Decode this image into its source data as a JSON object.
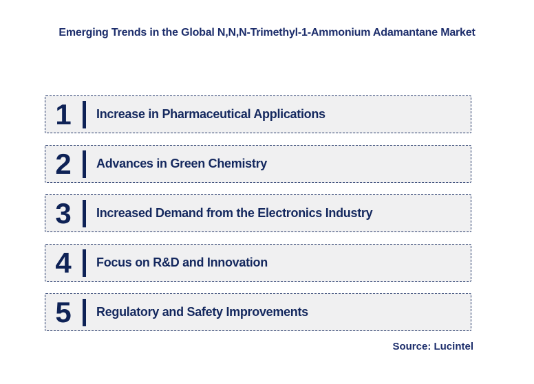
{
  "title": "Emerging Trends in the Global N,N,N-Trimethyl-1-Ammonium Adamantane Market",
  "trends": [
    {
      "number": "1",
      "label": "Increase in Pharmaceutical Applications"
    },
    {
      "number": "2",
      "label": "Advances in Green Chemistry"
    },
    {
      "number": "3",
      "label": "Increased Demand from the Electronics Industry"
    },
    {
      "number": "4",
      "label": "Focus on R&D and Innovation"
    },
    {
      "number": "5",
      "label": "Regulatory and Safety Improvements"
    }
  ],
  "source": "Source: Lucintel",
  "colors": {
    "navy_text": "#14285e",
    "navy_accent": "#0e2256",
    "title_navy": "#1c2d6b",
    "row_background": "#f0f0f1",
    "dashed_border": "#1a2f63",
    "page_background": "#ffffff"
  }
}
